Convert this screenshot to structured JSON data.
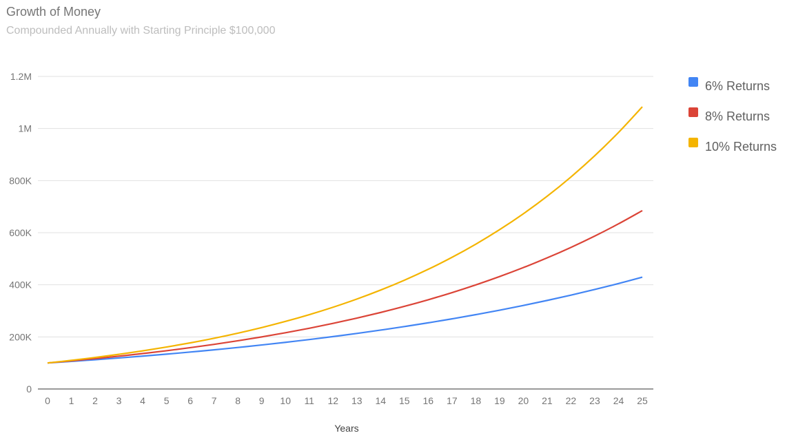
{
  "chart_data": {
    "type": "line",
    "title": "Growth of Money",
    "subtitle": "Compounded Annually with Starting Principle $100,000",
    "xlabel": "Years",
    "ylabel": "",
    "x": [
      0,
      1,
      2,
      3,
      4,
      5,
      6,
      7,
      8,
      9,
      10,
      11,
      12,
      13,
      14,
      15,
      16,
      17,
      18,
      19,
      20,
      21,
      22,
      23,
      24,
      25
    ],
    "ylim": [
      0,
      1200000
    ],
    "yticks": [
      {
        "value": 0,
        "label": "0"
      },
      {
        "value": 200000,
        "label": "200K"
      },
      {
        "value": 400000,
        "label": "400K"
      },
      {
        "value": 600000,
        "label": "600K"
      },
      {
        "value": 800000,
        "label": "800K"
      },
      {
        "value": 1000000,
        "label": "1M"
      },
      {
        "value": 1200000,
        "label": "1.2M"
      }
    ],
    "grid": true,
    "legend_position": "right",
    "series": [
      {
        "name": "6% Returns",
        "color": "#4285f4",
        "values": [
          100000,
          106000,
          112360,
          119102,
          126248,
          133823,
          141852,
          150363,
          159385,
          168948,
          179085,
          189830,
          201220,
          213293,
          226090,
          239656,
          254035,
          269277,
          285434,
          302560,
          320714,
          339956,
          360354,
          381975,
          404893,
          429187
        ]
      },
      {
        "name": "8% Returns",
        "color": "#db4437",
        "values": [
          100000,
          108000,
          116640,
          125971,
          136049,
          146933,
          158687,
          171382,
          185093,
          199900,
          215892,
          233164,
          251817,
          271962,
          293719,
          317217,
          342594,
          370002,
          399602,
          431570,
          466096,
          503383,
          543654,
          587146,
          634118,
          684848
        ]
      },
      {
        "name": "10% Returns",
        "color": "#f4b400",
        "values": [
          100000,
          110000,
          121000,
          133100,
          146410,
          161051,
          177156,
          194872,
          214359,
          235795,
          259374,
          285312,
          313843,
          345227,
          379750,
          417725,
          459497,
          505447,
          555992,
          611591,
          672750,
          740025,
          814027,
          895430,
          984973,
          1083471
        ]
      }
    ]
  }
}
